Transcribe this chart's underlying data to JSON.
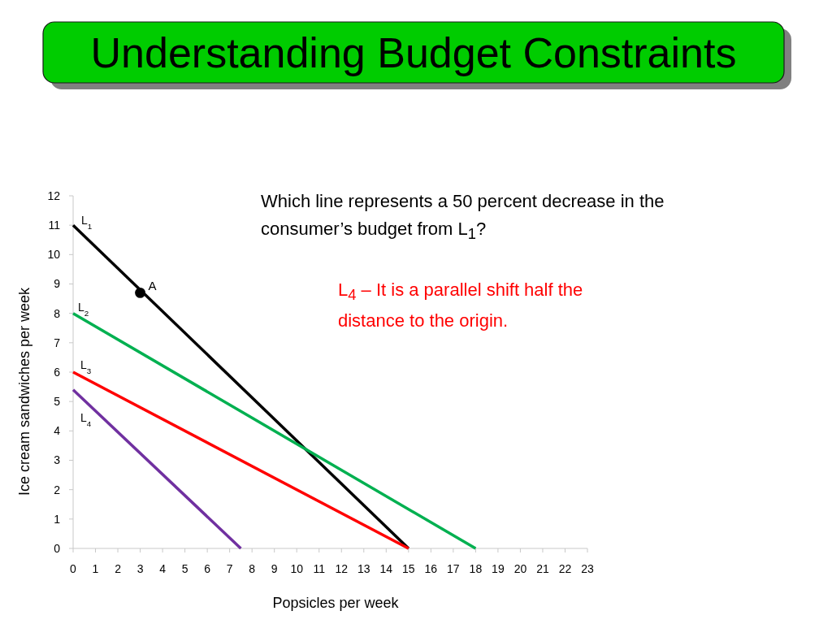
{
  "chart_data": {
    "type": "line",
    "title": "Understanding Budget Constraints",
    "xlabel": "Popsicles per week",
    "ylabel": "Ice cream sandwiches per week",
    "xlim": [
      0,
      23
    ],
    "ylim": [
      0,
      12
    ],
    "xticks": [
      0,
      1,
      2,
      3,
      4,
      5,
      6,
      7,
      8,
      9,
      10,
      11,
      12,
      13,
      14,
      15,
      16,
      17,
      18,
      19,
      20,
      21,
      22,
      23
    ],
    "yticks": [
      0,
      1,
      2,
      3,
      4,
      5,
      6,
      7,
      8,
      9,
      10,
      11,
      12
    ],
    "annotations": [
      "Which line represents a 50 percent decrease in the consumer’s budget from L$_{1}$?",
      "L$_{4}$ – It is a parallel shift half the distance to the origin."
    ],
    "series": [
      {
        "name": "L$_{1}$",
        "color": "#000000",
        "x": [
          0,
          15
        ],
        "values": [
          11,
          0
        ]
      },
      {
        "name": "L$_{2}$",
        "color": "#00b050",
        "x": [
          0,
          18
        ],
        "values": [
          8,
          0
        ]
      },
      {
        "name": "L$_{3}$",
        "color": "#ff0000",
        "x": [
          0,
          15
        ],
        "values": [
          6,
          0
        ]
      },
      {
        "name": "L$_{4}$",
        "color": "#7030a0",
        "x": [
          0,
          7.5
        ],
        "values": [
          5.4,
          0
        ]
      },
      {
        "name": "A",
        "type": "scatter",
        "marker": "circle",
        "color": "#000000",
        "x": [
          3
        ],
        "values": [
          8.7
        ]
      }
    ]
  }
}
